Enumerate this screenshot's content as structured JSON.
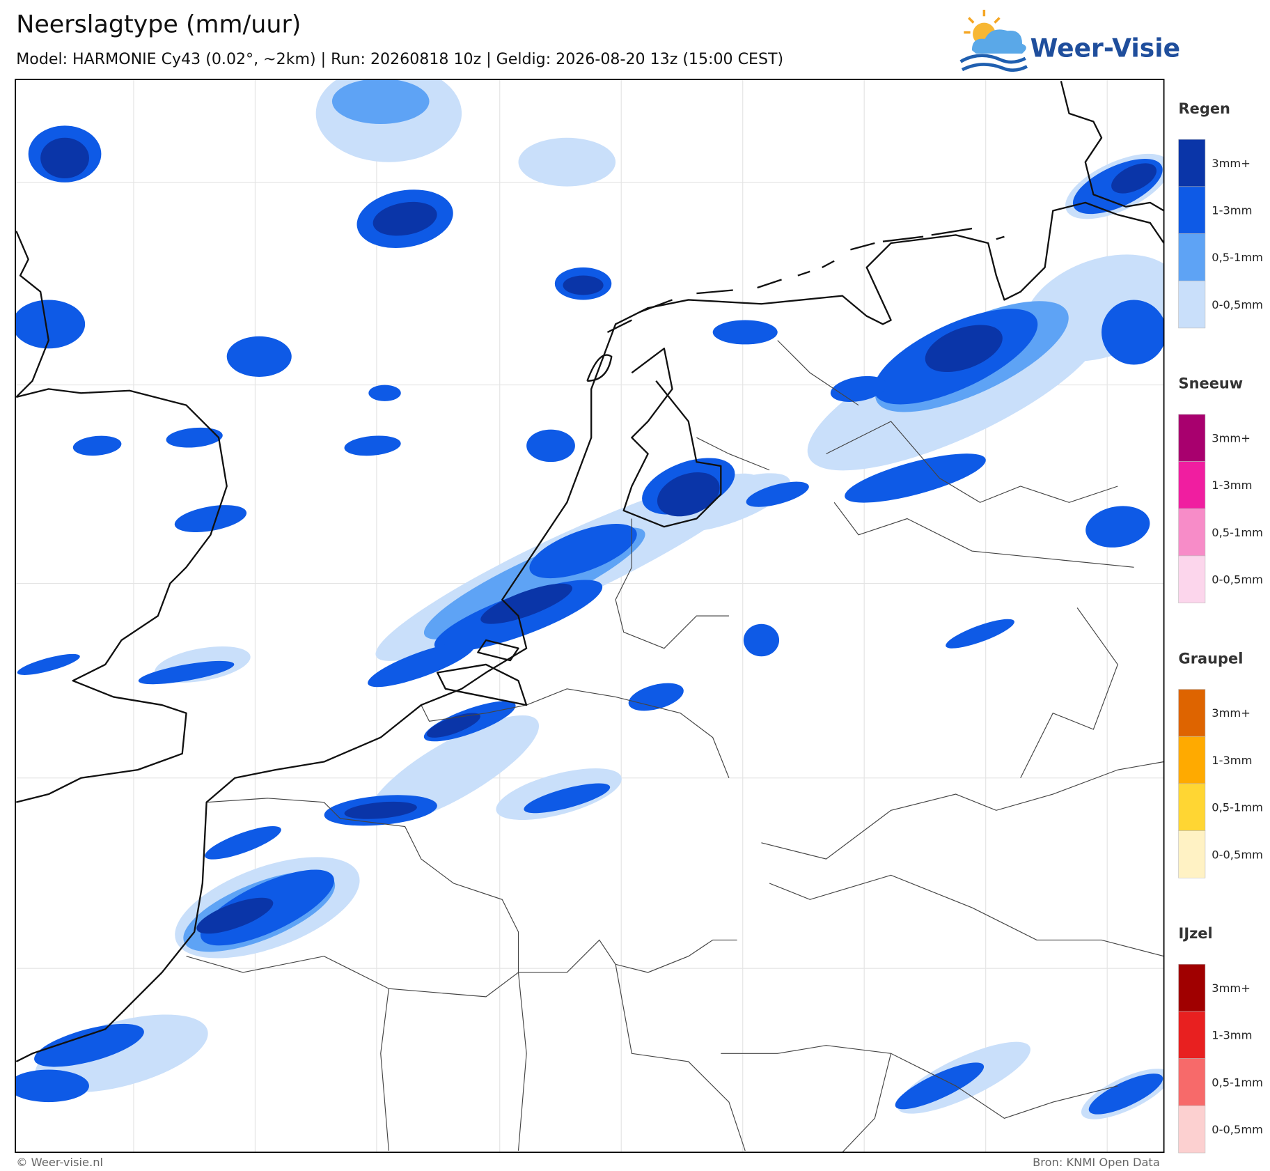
{
  "header": {
    "title": "Neerslagtype (mm/uur)",
    "subtitle": "Model: HARMONIE Cy43 (0.02°, ~2km)  |  Run: 20260818 10z  |  Geldig: 2026-08-20 13z (15:00 CEST)"
  },
  "logo": {
    "text": "Weer-Visie"
  },
  "legend": {
    "groups": [
      {
        "title": "Regen",
        "items": [
          {
            "label": "3mm+",
            "color": "#0a35a8"
          },
          {
            "label": "1-3mm",
            "color": "#0e5ae6"
          },
          {
            "label": "0,5-1mm",
            "color": "#5ea3f5"
          },
          {
            "label": "0-0,5mm",
            "color": "#c9dffa"
          }
        ]
      },
      {
        "title": "Sneeuw",
        "items": [
          {
            "label": "3mm+",
            "color": "#a8006e"
          },
          {
            "label": "1-3mm",
            "color": "#f01ea0"
          },
          {
            "label": "0,5-1mm",
            "color": "#f78cc8"
          },
          {
            "label": "0-0,5mm",
            "color": "#fcd6ec"
          }
        ]
      },
      {
        "title": "Graupel",
        "items": [
          {
            "label": "3mm+",
            "color": "#de6400"
          },
          {
            "label": "1-3mm",
            "color": "#ffaa00"
          },
          {
            "label": "0,5-1mm",
            "color": "#ffd633"
          },
          {
            "label": "0-0,5mm",
            "color": "#fff2c4"
          }
        ]
      },
      {
        "title": "IJzel",
        "items": [
          {
            "label": "3mm+",
            "color": "#a00000"
          },
          {
            "label": "1-3mm",
            "color": "#e82020"
          },
          {
            "label": "0,5-1mm",
            "color": "#f76a6a"
          },
          {
            "label": "0-0,5mm",
            "color": "#fcd0d0"
          }
        ]
      }
    ]
  },
  "footer": {
    "left": "© Weer-visie.nl",
    "right": "Bron: KNMI Open Data"
  }
}
